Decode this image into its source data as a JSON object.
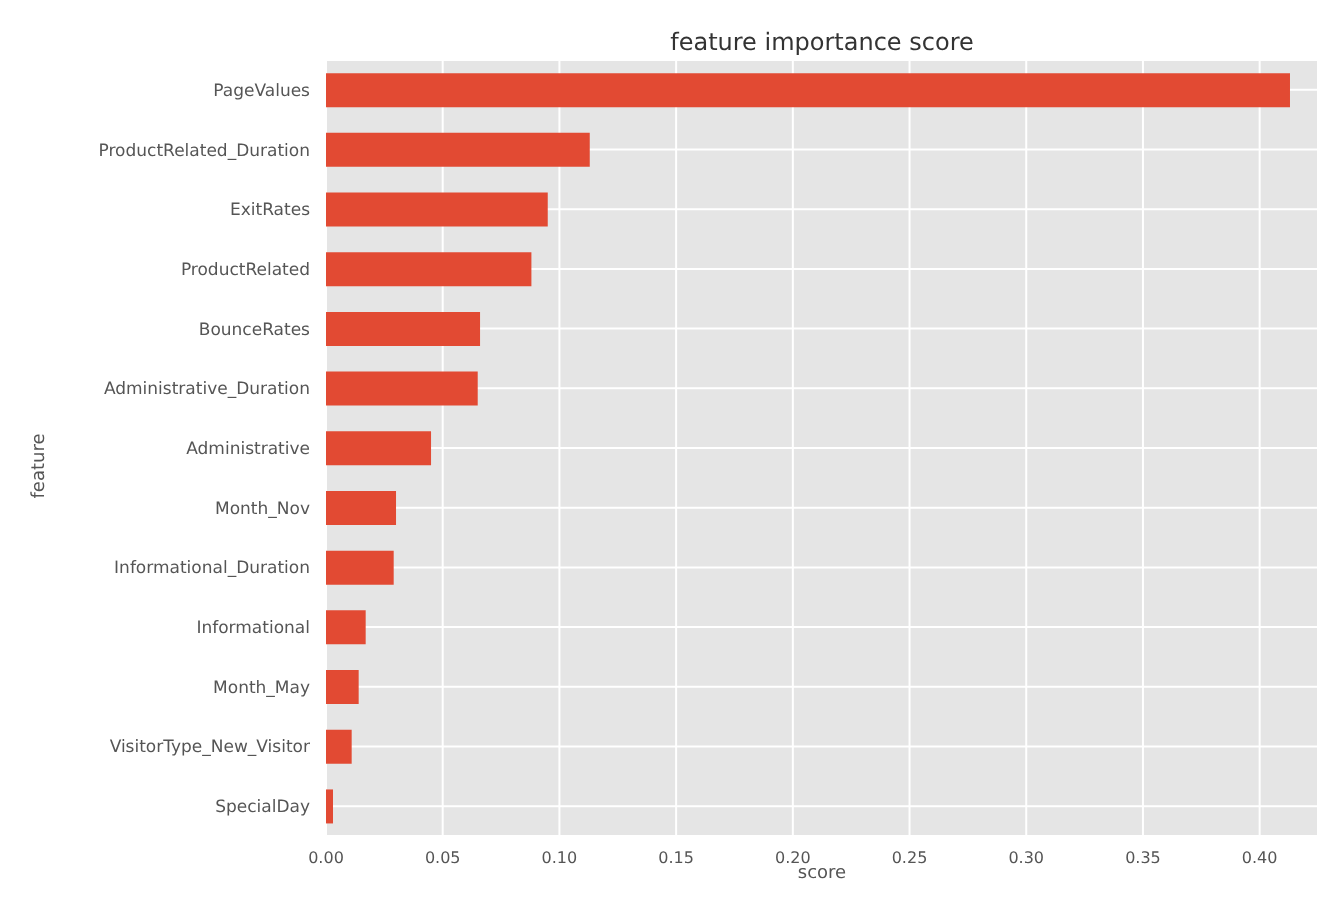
{
  "chart_data": {
    "type": "bar",
    "orientation": "horizontal",
    "title": "feature importance score",
    "xlabel": "score",
    "ylabel": "feature",
    "categories": [
      "PageValues",
      "ProductRelated_Duration",
      "ExitRates",
      "ProductRelated",
      "BounceRates",
      "Administrative_Duration",
      "Administrative",
      "Month_Nov",
      "Informational_Duration",
      "Informational",
      "Month_May",
      "VisitorType_New_Visitor",
      "SpecialDay"
    ],
    "values": [
      0.413,
      0.113,
      0.095,
      0.088,
      0.066,
      0.065,
      0.045,
      0.03,
      0.029,
      0.017,
      0.014,
      0.011,
      0.003
    ],
    "color": "#e24a33",
    "xlim": [
      0,
      0.425
    ],
    "xticks": [
      {
        "value": 0,
        "label": "0.00"
      },
      {
        "value": 0.05,
        "label": "0.05"
      },
      {
        "value": 0.1,
        "label": "0.10"
      },
      {
        "value": 0.15,
        "label": "0.15"
      },
      {
        "value": 0.2,
        "label": "0.20"
      },
      {
        "value": 0.25,
        "label": "0.25"
      },
      {
        "value": 0.3,
        "label": "0.30"
      },
      {
        "value": 0.35,
        "label": "0.35"
      },
      {
        "value": 0.4,
        "label": "0.40"
      }
    ],
    "grid": true
  }
}
